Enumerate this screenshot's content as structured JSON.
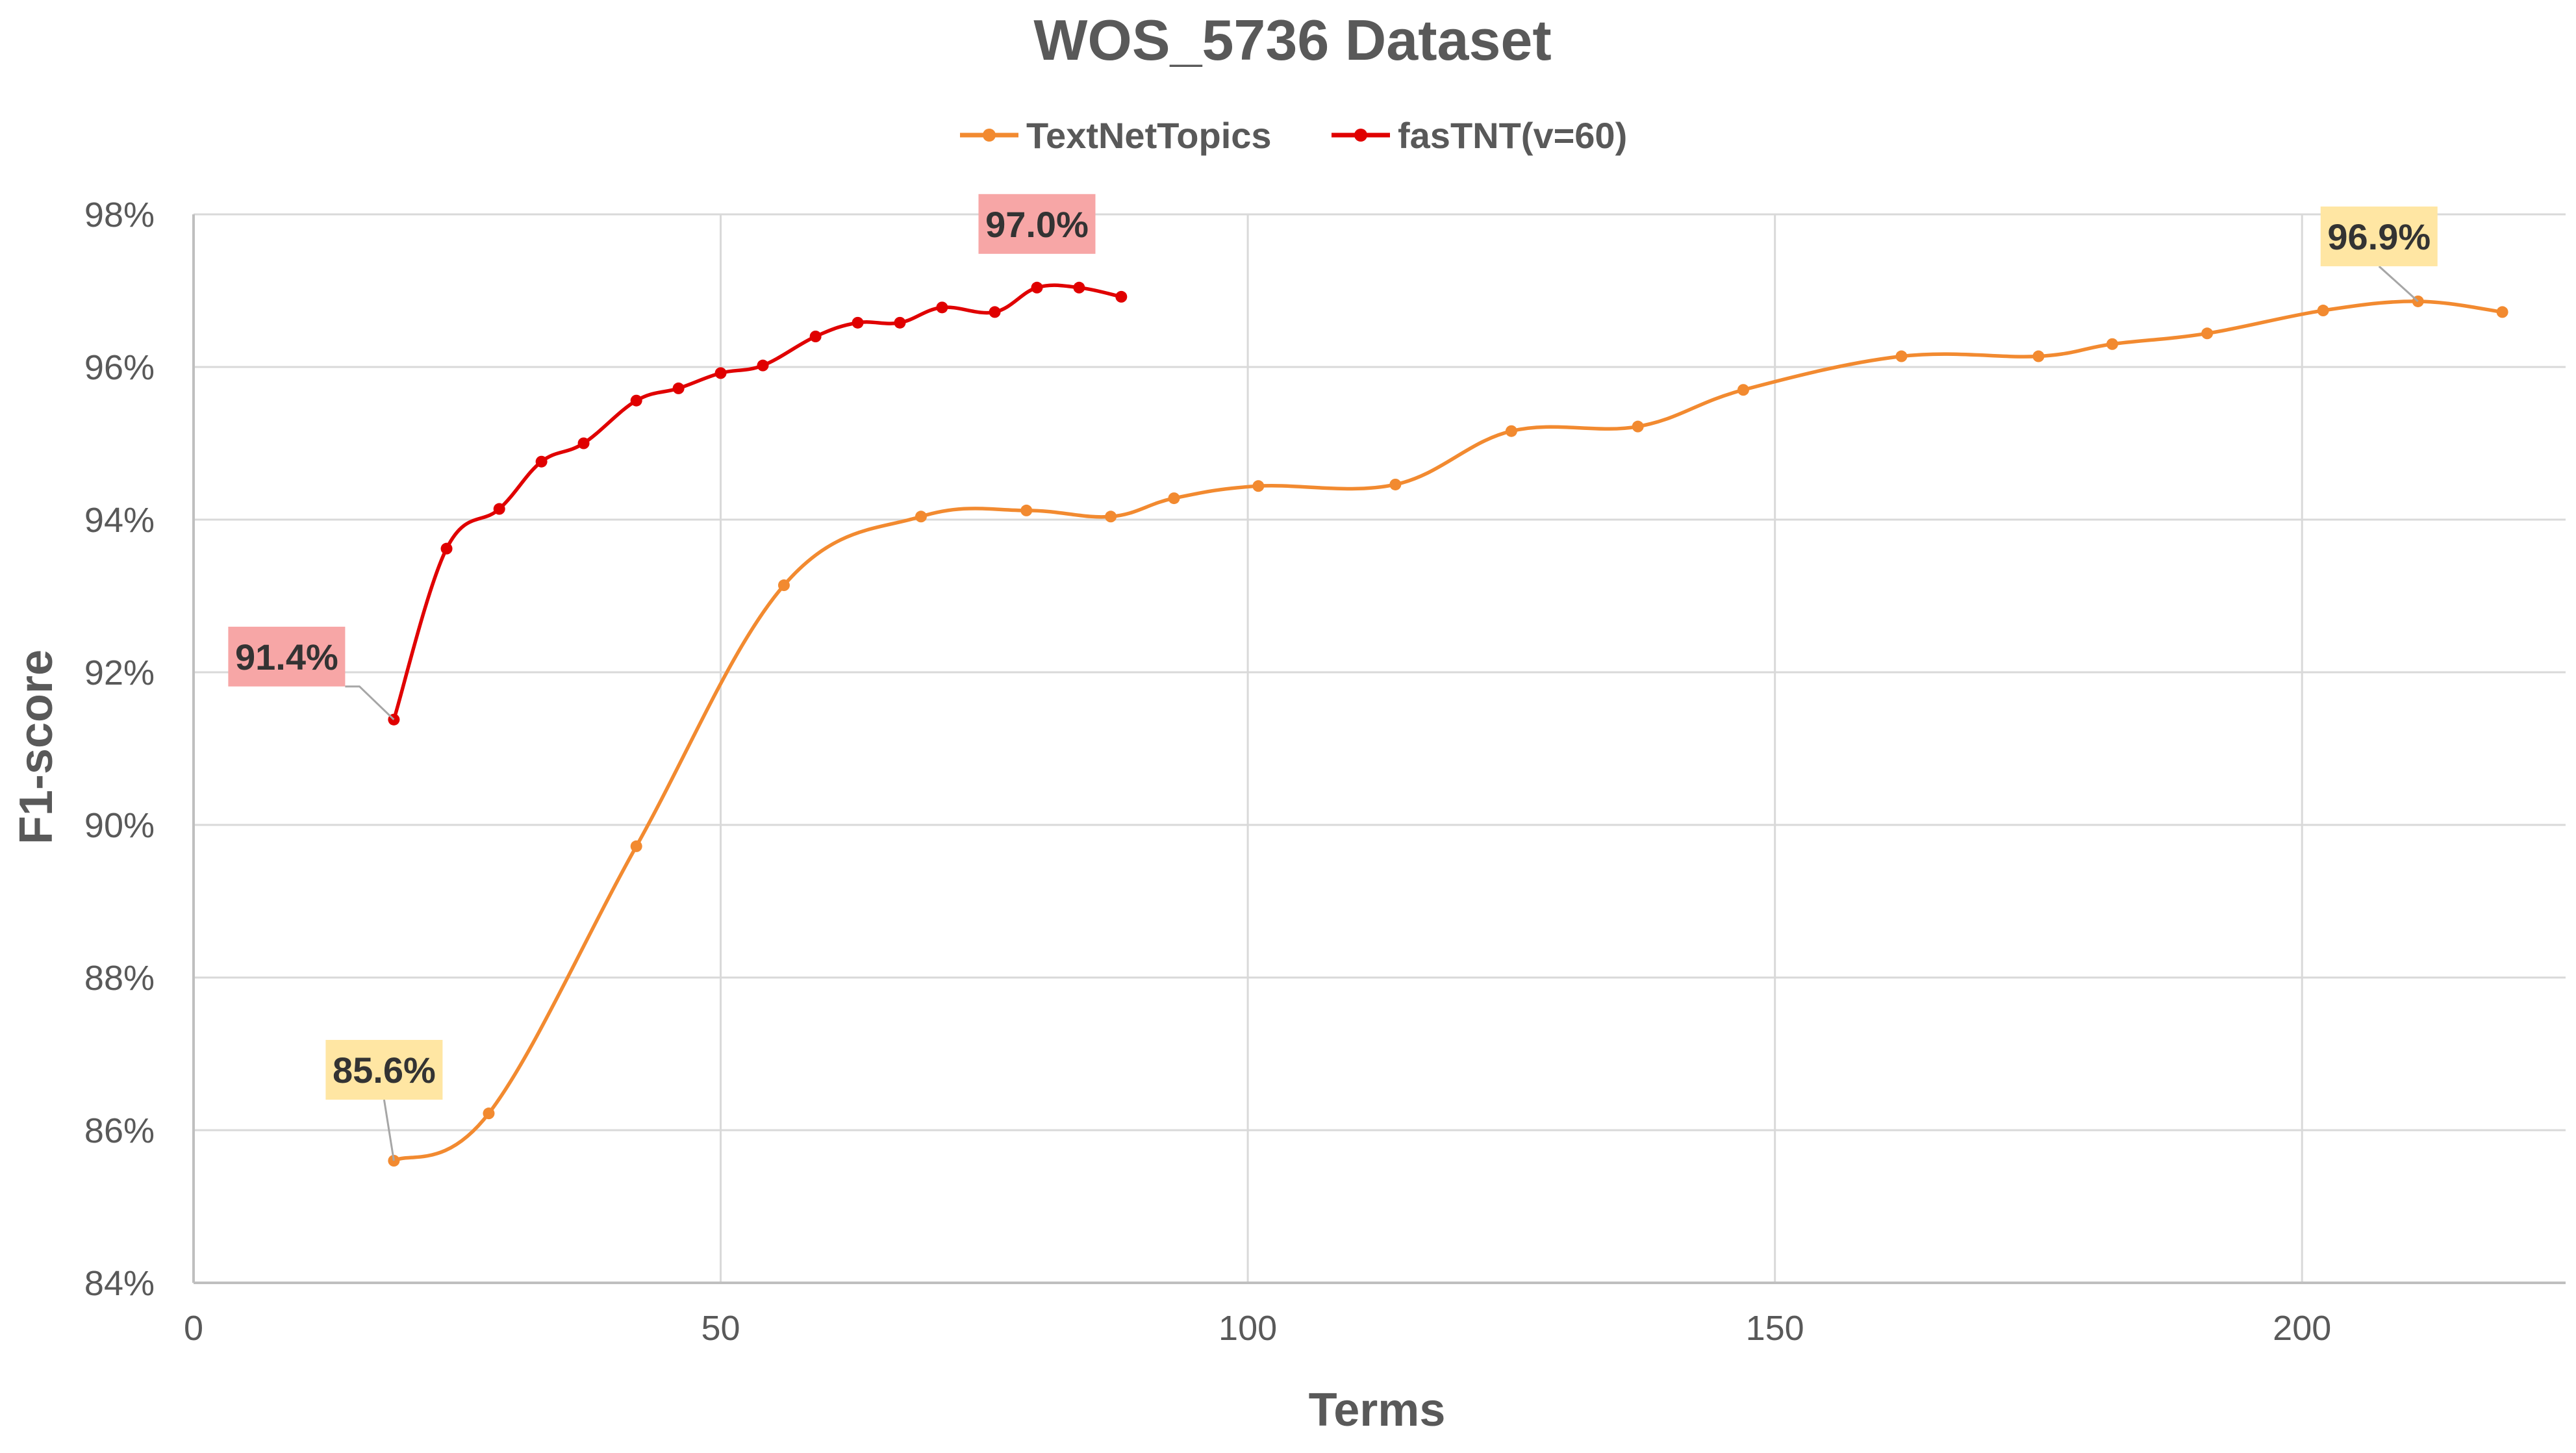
{
  "colors": {
    "textnettopics": "#F28A30",
    "fastnt": "#E00000",
    "label_bg_textnettopics": "#FFE6A3",
    "label_bg_fastnt": "#F7A6A6",
    "grid": "#D9D9D9",
    "text": "#595959"
  },
  "chart_data": {
    "type": "line",
    "title": "WOS_5736 Dataset",
    "xlabel": "Terms",
    "ylabel": "F1-score",
    "xlim": [
      0,
      225
    ],
    "ylim": [
      84,
      98
    ],
    "xticks": [
      0,
      50,
      100,
      150,
      200
    ],
    "yticks": [
      84,
      86,
      88,
      90,
      92,
      94,
      96,
      98
    ],
    "xtick_labels": [
      "0",
      "50",
      "100",
      "150",
      "200"
    ],
    "ytick_labels": [
      "84%",
      "86%",
      "88%",
      "90%",
      "92%",
      "94%",
      "96%",
      "98%"
    ],
    "grid": true,
    "legend_position": "top",
    "series": [
      {
        "name": "TextNetTopics",
        "color": "#F28A30",
        "x": [
          19,
          28,
          42,
          56,
          69,
          79,
          87,
          93,
          101,
          114,
          125,
          137,
          147,
          162,
          175,
          182,
          191,
          202,
          211,
          219
        ],
        "y": [
          85.6,
          86.22,
          89.72,
          93.14,
          94.04,
          94.12,
          94.04,
          94.28,
          94.44,
          94.46,
          95.16,
          95.22,
          95.7,
          96.14,
          96.14,
          96.3,
          96.44,
          96.74,
          96.86,
          96.72
        ]
      },
      {
        "name": "fasTNT(v=60)",
        "color": "#E00000",
        "x": [
          19,
          24,
          29,
          33,
          37,
          42,
          46,
          50,
          54,
          59,
          63,
          67,
          71,
          76,
          80,
          84,
          88
        ],
        "y": [
          91.38,
          93.62,
          94.14,
          94.76,
          95.0,
          95.56,
          95.72,
          95.92,
          96.02,
          96.4,
          96.58,
          96.58,
          96.78,
          96.72,
          97.04,
          97.04,
          96.92
        ]
      }
    ],
    "annotations": [
      {
        "text": "97.0%",
        "series": 1,
        "point": 14
      },
      {
        "text": "91.4%",
        "series": 1,
        "point": 0
      },
      {
        "text": "85.6%",
        "series": 0,
        "point": 0
      },
      {
        "text": "96.9%",
        "series": 0,
        "point": 18
      }
    ]
  }
}
